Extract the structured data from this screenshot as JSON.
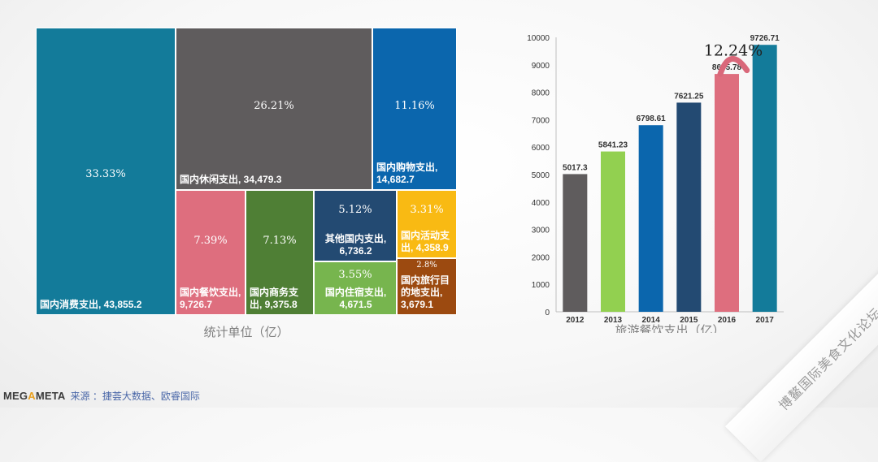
{
  "treemap": {
    "caption": "统计单位（亿）",
    "tiles": [
      {
        "name": "国内消费支出,",
        "value": "43,855.2",
        "pct": "33.33%",
        "color": "#137b9a"
      },
      {
        "name": "国内休闲支出,",
        "value": "34,479.3",
        "pct": "26.21%",
        "color": "#5f5c5d"
      },
      {
        "name": "国内购物支出,",
        "value": "14,682.7",
        "pct": "11.16%",
        "color": "#0b66ad"
      },
      {
        "name": "国内餐饮支出,",
        "value": "9,726.7",
        "pct": "7.39%",
        "color": "#de6e7e"
      },
      {
        "name": "国内商务支",
        "value": "出, 9,375.8",
        "pct": "7.13%",
        "color": "#4f7f35"
      },
      {
        "name": "其他国内支出,",
        "value": "6,736.2",
        "pct": "5.12%",
        "color": "#234a72"
      },
      {
        "name": "国内住宿支出,",
        "value": "4,671.5",
        "pct": "3.55%",
        "color": "#77b54e"
      },
      {
        "name": "国内活动支",
        "value": "出, 4,358.9",
        "pct": "3.31%",
        "color": "#f9ba13"
      },
      {
        "name": "国内旅行目的地支出,",
        "value": "3,679.1",
        "pct": "2.8%",
        "color": "#9c4a10"
      }
    ]
  },
  "chart_data": {
    "type": "bar",
    "title": "",
    "xlabel": "旅游餐饮支出（亿）",
    "ylabel": "",
    "categories": [
      "2012",
      "2013",
      "2014",
      "2015",
      "2016",
      "2017"
    ],
    "values": [
      5017.3,
      5841.23,
      6798.61,
      7621.25,
      8665.78,
      9726.71
    ],
    "value_labels": [
      "5017.3",
      "5841.23",
      "6798.61",
      "7621.25",
      "8665.78",
      "9726.71"
    ],
    "colors": [
      "#5f5c5d",
      "#92d050",
      "#0b66ad",
      "#234a72",
      "#de6e7e",
      "#137b9a"
    ],
    "ylim": [
      0,
      10000
    ],
    "yticks": [
      "0",
      "1000",
      "2000",
      "3000",
      "4000",
      "5000",
      "6000",
      "7000",
      "8000",
      "9000",
      "10000"
    ],
    "annotation": "12.24%",
    "grid": false
  },
  "footer": {
    "logo_pre": "MEG",
    "logo_mid": "A",
    "logo_post": "META",
    "source": "来源 ：捷荟大数据、欧睿国际"
  },
  "watermark": "博鳌国际美食文化论坛"
}
